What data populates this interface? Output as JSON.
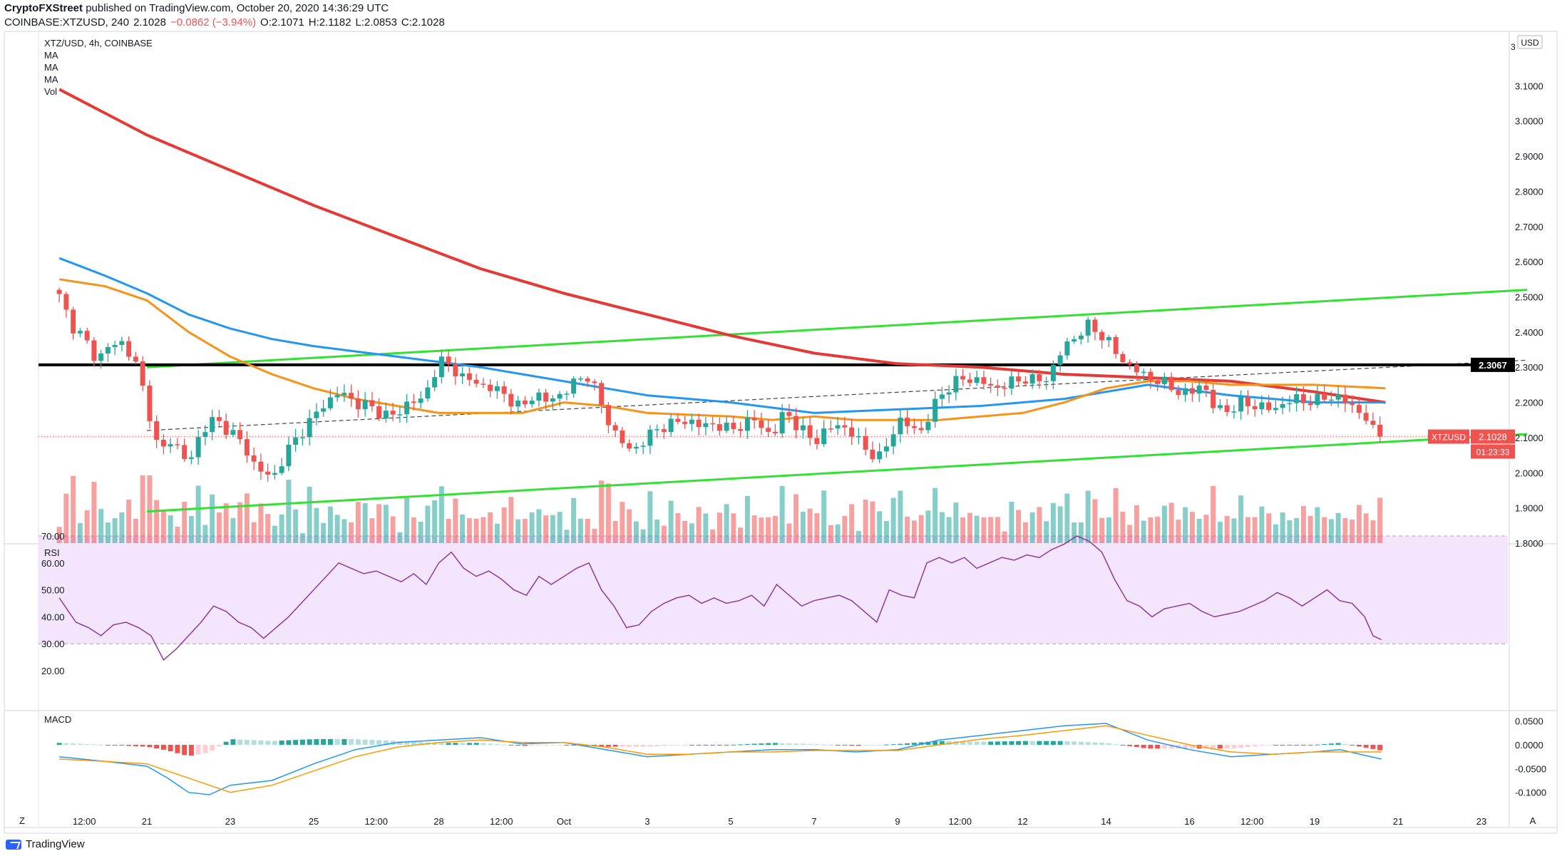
{
  "header": {
    "publisher": "CryptoFXStreet",
    "published_text": "published on TradingView.com, October 20, 2020 14:36:29 UTC",
    "symbol_line": "COINBASE:XTZUSD, 240",
    "last": "2.1028",
    "change": "−0.0862 (−3.94%)",
    "open": "O:2.1071",
    "high": "H:2.1182",
    "low": "L:2.0853",
    "close": "C:2.1028"
  },
  "legend": {
    "title": "XTZ/USD, 4h, COINBASE",
    "items": [
      "MA",
      "MA",
      "MA",
      "Vol"
    ]
  },
  "currency_label": "USD",
  "price_axis_top_partial": "3",
  "price_tag": {
    "label": "XTZUSD",
    "value": "2.1028",
    "countdown": "01:23:33"
  },
  "level_tag": {
    "value": "2.3067"
  },
  "rsi_label": "RSI",
  "macd_label": "MACD",
  "footer": {
    "brand": "TradingView"
  },
  "colors": {
    "up": "#26a69a",
    "down": "#ef5350",
    "ma_fast": "#f7931a",
    "ma_mid": "#2196f3",
    "ma_slow": "#e53935",
    "channel": "#33e033",
    "rsi": "#8e3a9e",
    "rsi_band": "#f3e5fc",
    "macd": "#2196f3",
    "signal": "#ff9800"
  },
  "chart_data": {
    "type": "candlestick",
    "symbol": "XTZ/USD",
    "timeframe": "4h",
    "price_ticks": [
      1.8,
      1.9,
      2.0,
      2.1,
      2.2,
      2.3,
      2.4,
      2.5,
      2.6,
      2.7,
      2.8,
      2.9,
      3.0,
      3.1
    ],
    "ylim": [
      1.8,
      3.15
    ],
    "x_labels": [
      {
        "label": "12:00",
        "day": 0.5
      },
      {
        "label": "21",
        "day": 2
      },
      {
        "label": "23",
        "day": 4
      },
      {
        "label": "25",
        "day": 6
      },
      {
        "label": "12:00",
        "day": 7.5
      },
      {
        "label": "28",
        "day": 9
      },
      {
        "label": "12:00",
        "day": 10.5
      },
      {
        "label": "Oct",
        "day": 12
      },
      {
        "label": "3",
        "day": 14
      },
      {
        "label": "5",
        "day": 16
      },
      {
        "label": "7",
        "day": 18
      },
      {
        "label": "9",
        "day": 20
      },
      {
        "label": "12:00",
        "day": 21.5
      },
      {
        "label": "12",
        "day": 23
      },
      {
        "label": "14",
        "day": 25
      },
      {
        "label": "16",
        "day": 27
      },
      {
        "label": "12:00",
        "day": 28.5
      },
      {
        "label": "19",
        "day": 30
      },
      {
        "label": "21",
        "day": 32
      },
      {
        "label": "23",
        "day": 34
      }
    ],
    "horizontal_level": 2.3067,
    "last_price": 2.1028,
    "close_path": [
      [
        -0.1,
        2.5
      ],
      [
        0.2,
        2.42
      ],
      [
        0.5,
        2.38
      ],
      [
        0.8,
        2.32
      ],
      [
        1.1,
        2.36
      ],
      [
        1.4,
        2.37
      ],
      [
        1.7,
        2.32
      ],
      [
        2.0,
        2.2
      ],
      [
        2.3,
        2.05
      ],
      [
        2.6,
        2.1
      ],
      [
        3.0,
        2.02
      ],
      [
        3.3,
        2.12
      ],
      [
        3.6,
        2.15
      ],
      [
        4.0,
        2.12
      ],
      [
        4.3,
        2.08
      ],
      [
        4.6,
        2.02
      ],
      [
        5.0,
        1.98
      ],
      [
        5.3,
        2.05
      ],
      [
        5.6,
        2.1
      ],
      [
        6.0,
        2.16
      ],
      [
        6.3,
        2.2
      ],
      [
        6.6,
        2.23
      ],
      [
        7.0,
        2.2
      ],
      [
        7.3,
        2.19
      ],
      [
        7.6,
        2.17
      ],
      [
        8.0,
        2.16
      ],
      [
        8.3,
        2.21
      ],
      [
        8.6,
        2.2
      ],
      [
        9.0,
        2.32
      ],
      [
        9.3,
        2.3
      ],
      [
        9.6,
        2.27
      ],
      [
        10.0,
        2.25
      ],
      [
        10.3,
        2.24
      ],
      [
        10.6,
        2.22
      ],
      [
        11.0,
        2.18
      ],
      [
        11.3,
        2.23
      ],
      [
        11.6,
        2.2
      ],
      [
        12.0,
        2.23
      ],
      [
        12.3,
        2.26
      ],
      [
        12.6,
        2.28
      ],
      [
        13.0,
        2.16
      ],
      [
        13.3,
        2.1
      ],
      [
        13.6,
        2.06
      ],
      [
        14.0,
        2.1
      ],
      [
        14.3,
        2.13
      ],
      [
        14.6,
        2.14
      ],
      [
        15.0,
        2.15
      ],
      [
        15.3,
        2.13
      ],
      [
        15.6,
        2.14
      ],
      [
        16.0,
        2.12
      ],
      [
        16.3,
        2.14
      ],
      [
        16.6,
        2.15
      ],
      [
        17.0,
        2.1
      ],
      [
        17.3,
        2.18
      ],
      [
        17.6,
        2.13
      ],
      [
        18.0,
        2.09
      ],
      [
        18.3,
        2.12
      ],
      [
        18.6,
        2.14
      ],
      [
        19.0,
        2.1
      ],
      [
        19.3,
        2.06
      ],
      [
        19.6,
        2.04
      ],
      [
        20.0,
        2.15
      ],
      [
        20.3,
        2.13
      ],
      [
        20.6,
        2.12
      ],
      [
        21.0,
        2.22
      ],
      [
        21.3,
        2.25
      ],
      [
        21.6,
        2.27
      ],
      [
        22.0,
        2.26
      ],
      [
        22.3,
        2.24
      ],
      [
        22.6,
        2.25
      ],
      [
        23.0,
        2.27
      ],
      [
        23.3,
        2.26
      ],
      [
        23.6,
        2.27
      ],
      [
        24.0,
        2.36
      ],
      [
        24.3,
        2.39
      ],
      [
        24.6,
        2.42
      ],
      [
        25.0,
        2.38
      ],
      [
        25.3,
        2.33
      ],
      [
        25.6,
        2.3
      ],
      [
        26.0,
        2.27
      ],
      [
        26.3,
        2.26
      ],
      [
        26.6,
        2.24
      ],
      [
        27.0,
        2.22
      ],
      [
        27.3,
        2.26
      ],
      [
        27.6,
        2.18
      ],
      [
        28.0,
        2.18
      ],
      [
        28.3,
        2.2
      ],
      [
        28.6,
        2.19
      ],
      [
        29.0,
        2.18
      ],
      [
        29.3,
        2.2
      ],
      [
        29.6,
        2.21
      ],
      [
        30.0,
        2.2
      ],
      [
        30.3,
        2.22
      ],
      [
        30.6,
        2.21
      ],
      [
        30.9,
        2.19
      ],
      [
        31.2,
        2.16
      ],
      [
        31.4,
        2.12
      ],
      [
        31.6,
        2.1028
      ]
    ],
    "ma_slow": [
      [
        -0.1,
        3.09
      ],
      [
        2,
        2.96
      ],
      [
        4,
        2.86
      ],
      [
        6,
        2.76
      ],
      [
        8,
        2.67
      ],
      [
        10,
        2.58
      ],
      [
        12,
        2.51
      ],
      [
        14,
        2.45
      ],
      [
        16,
        2.39
      ],
      [
        18,
        2.34
      ],
      [
        20,
        2.31
      ],
      [
        22,
        2.3
      ],
      [
        24,
        2.28
      ],
      [
        26,
        2.27
      ],
      [
        28,
        2.26
      ],
      [
        30,
        2.23
      ],
      [
        31.7,
        2.2
      ]
    ],
    "ma_mid": [
      [
        -0.1,
        2.61
      ],
      [
        1,
        2.56
      ],
      [
        2,
        2.51
      ],
      [
        3,
        2.45
      ],
      [
        4,
        2.41
      ],
      [
        5,
        2.38
      ],
      [
        6,
        2.36
      ],
      [
        8,
        2.33
      ],
      [
        10,
        2.3
      ],
      [
        12,
        2.26
      ],
      [
        14,
        2.22
      ],
      [
        16,
        2.2
      ],
      [
        18,
        2.17
      ],
      [
        20,
        2.18
      ],
      [
        22,
        2.19
      ],
      [
        24,
        2.21
      ],
      [
        26,
        2.25
      ],
      [
        28,
        2.22
      ],
      [
        30,
        2.2
      ],
      [
        31.7,
        2.2
      ]
    ],
    "ma_fast": [
      [
        -0.1,
        2.55
      ],
      [
        1,
        2.53
      ],
      [
        2,
        2.49
      ],
      [
        3,
        2.4
      ],
      [
        4,
        2.33
      ],
      [
        5,
        2.28
      ],
      [
        6,
        2.24
      ],
      [
        7,
        2.21
      ],
      [
        9,
        2.17
      ],
      [
        11,
        2.17
      ],
      [
        12,
        2.2
      ],
      [
        13,
        2.19
      ],
      [
        14,
        2.17
      ],
      [
        16,
        2.16
      ],
      [
        17,
        2.15
      ],
      [
        18,
        2.16
      ],
      [
        19,
        2.15
      ],
      [
        20,
        2.15
      ],
      [
        21,
        2.15
      ],
      [
        22,
        2.16
      ],
      [
        23,
        2.17
      ],
      [
        24,
        2.2
      ],
      [
        25,
        2.24
      ],
      [
        26,
        2.26
      ],
      [
        27,
        2.26
      ],
      [
        28,
        2.25
      ],
      [
        29,
        2.25
      ],
      [
        30,
        2.25
      ],
      [
        31.7,
        2.24
      ]
    ],
    "channel_upper": [
      [
        2,
        2.3
      ],
      [
        35.1,
        2.52
      ]
    ],
    "channel_lower": [
      [
        2,
        1.89
      ],
      [
        35.1,
        2.11
      ]
    ],
    "dashed_trend": [
      [
        2,
        2.12
      ],
      [
        35.1,
        2.32
      ]
    ],
    "volume_ylim": [
      0,
      100
    ],
    "rsi": {
      "yticks": [
        20,
        30,
        40,
        50,
        60,
        70
      ],
      "band": [
        30,
        70
      ],
      "ylim": [
        16,
        74
      ],
      "points": [
        [
          -0.1,
          47
        ],
        [
          0.3,
          38
        ],
        [
          0.6,
          36
        ],
        [
          0.9,
          33
        ],
        [
          1.2,
          37
        ],
        [
          1.5,
          38
        ],
        [
          1.8,
          36
        ],
        [
          2.1,
          33
        ],
        [
          2.4,
          24
        ],
        [
          2.7,
          28
        ],
        [
          3.0,
          33
        ],
        [
          3.3,
          38
        ],
        [
          3.6,
          44
        ],
        [
          3.9,
          42
        ],
        [
          4.2,
          38
        ],
        [
          4.5,
          36
        ],
        [
          4.8,
          32
        ],
        [
          5.1,
          36
        ],
        [
          5.4,
          40
        ],
        [
          5.7,
          45
        ],
        [
          6.0,
          50
        ],
        [
          6.3,
          55
        ],
        [
          6.6,
          60
        ],
        [
          6.9,
          58
        ],
        [
          7.2,
          56
        ],
        [
          7.5,
          57
        ],
        [
          7.8,
          55
        ],
        [
          8.1,
          53
        ],
        [
          8.4,
          56
        ],
        [
          8.7,
          52
        ],
        [
          9.0,
          60
        ],
        [
          9.3,
          64
        ],
        [
          9.6,
          58
        ],
        [
          9.9,
          55
        ],
        [
          10.2,
          57
        ],
        [
          10.5,
          54
        ],
        [
          10.8,
          50
        ],
        [
          11.1,
          48
        ],
        [
          11.4,
          55
        ],
        [
          11.7,
          52
        ],
        [
          12.0,
          55
        ],
        [
          12.3,
          58
        ],
        [
          12.6,
          60
        ],
        [
          12.9,
          50
        ],
        [
          13.2,
          44
        ],
        [
          13.5,
          36
        ],
        [
          13.8,
          37
        ],
        [
          14.1,
          42
        ],
        [
          14.4,
          45
        ],
        [
          14.7,
          47
        ],
        [
          15.0,
          48
        ],
        [
          15.3,
          45
        ],
        [
          15.6,
          47
        ],
        [
          15.9,
          45
        ],
        [
          16.2,
          46
        ],
        [
          16.5,
          48
        ],
        [
          16.8,
          44
        ],
        [
          17.1,
          52
        ],
        [
          17.4,
          48
        ],
        [
          17.7,
          44
        ],
        [
          18.0,
          46
        ],
        [
          18.3,
          47
        ],
        [
          18.6,
          48
        ],
        [
          18.9,
          46
        ],
        [
          19.2,
          42
        ],
        [
          19.5,
          38
        ],
        [
          19.8,
          50
        ],
        [
          20.1,
          48
        ],
        [
          20.4,
          47
        ],
        [
          20.7,
          60
        ],
        [
          21.0,
          62
        ],
        [
          21.3,
          60
        ],
        [
          21.6,
          62
        ],
        [
          21.9,
          58
        ],
        [
          22.2,
          60
        ],
        [
          22.5,
          62
        ],
        [
          22.8,
          61
        ],
        [
          23.1,
          63
        ],
        [
          23.4,
          62
        ],
        [
          23.7,
          65
        ],
        [
          24.0,
          67
        ],
        [
          24.3,
          70
        ],
        [
          24.6,
          68
        ],
        [
          24.9,
          64
        ],
        [
          25.2,
          54
        ],
        [
          25.5,
          46
        ],
        [
          25.8,
          44
        ],
        [
          26.1,
          40
        ],
        [
          26.4,
          43
        ],
        [
          26.7,
          44
        ],
        [
          27.0,
          45
        ],
        [
          27.3,
          42
        ],
        [
          27.6,
          40
        ],
        [
          27.9,
          41
        ],
        [
          28.2,
          42
        ],
        [
          28.5,
          44
        ],
        [
          28.8,
          46
        ],
        [
          29.1,
          49
        ],
        [
          29.4,
          47
        ],
        [
          29.7,
          44
        ],
        [
          30.0,
          47
        ],
        [
          30.3,
          50
        ],
        [
          30.6,
          46
        ],
        [
          30.9,
          45
        ],
        [
          31.2,
          40
        ],
        [
          31.4,
          33
        ],
        [
          31.6,
          31.5
        ]
      ]
    },
    "macd": {
      "yticks": [
        -0.1,
        -0.05,
        0.0,
        0.05
      ],
      "ylim": [
        -0.125,
        0.075
      ],
      "macd_line": [
        [
          -0.1,
          -0.025
        ],
        [
          1,
          -0.035
        ],
        [
          2,
          -0.045
        ],
        [
          2.5,
          -0.07
        ],
        [
          3,
          -0.1
        ],
        [
          3.5,
          -0.105
        ],
        [
          4,
          -0.085
        ],
        [
          5,
          -0.075
        ],
        [
          6,
          -0.04
        ],
        [
          7,
          -0.01
        ],
        [
          8,
          0.005
        ],
        [
          9,
          0.01
        ],
        [
          10,
          0.015
        ],
        [
          11,
          0.002
        ],
        [
          12,
          0.005
        ],
        [
          13,
          -0.01
        ],
        [
          14,
          -0.025
        ],
        [
          15,
          -0.02
        ],
        [
          16,
          -0.015
        ],
        [
          17,
          -0.01
        ],
        [
          18,
          -0.01
        ],
        [
          19,
          -0.015
        ],
        [
          20,
          -0.01
        ],
        [
          21,
          0.01
        ],
        [
          22,
          0.02
        ],
        [
          23,
          0.03
        ],
        [
          24,
          0.04
        ],
        [
          25,
          0.045
        ],
        [
          26,
          0.01
        ],
        [
          27,
          -0.01
        ],
        [
          28,
          -0.025
        ],
        [
          29,
          -0.02
        ],
        [
          30,
          -0.015
        ],
        [
          30.6,
          -0.01
        ],
        [
          31.6,
          -0.03
        ]
      ],
      "signal_line": [
        [
          -0.1,
          -0.03
        ],
        [
          1,
          -0.035
        ],
        [
          2,
          -0.04
        ],
        [
          3,
          -0.07
        ],
        [
          4,
          -0.1
        ],
        [
          5,
          -0.085
        ],
        [
          6,
          -0.055
        ],
        [
          7,
          -0.025
        ],
        [
          8,
          -0.005
        ],
        [
          9,
          0.005
        ],
        [
          10,
          0.01
        ],
        [
          11,
          0.005
        ],
        [
          12,
          0.005
        ],
        [
          13,
          -0.005
        ],
        [
          14,
          -0.02
        ],
        [
          15,
          -0.02
        ],
        [
          16,
          -0.015
        ],
        [
          17,
          -0.015
        ],
        [
          18,
          -0.012
        ],
        [
          19,
          -0.012
        ],
        [
          20,
          -0.012
        ],
        [
          21,
          0.0
        ],
        [
          22,
          0.012
        ],
        [
          23,
          0.02
        ],
        [
          24,
          0.03
        ],
        [
          25,
          0.04
        ],
        [
          26,
          0.02
        ],
        [
          27,
          0.0
        ],
        [
          28,
          -0.015
        ],
        [
          29,
          -0.02
        ],
        [
          30,
          -0.015
        ],
        [
          31.6,
          -0.015
        ]
      ]
    }
  }
}
